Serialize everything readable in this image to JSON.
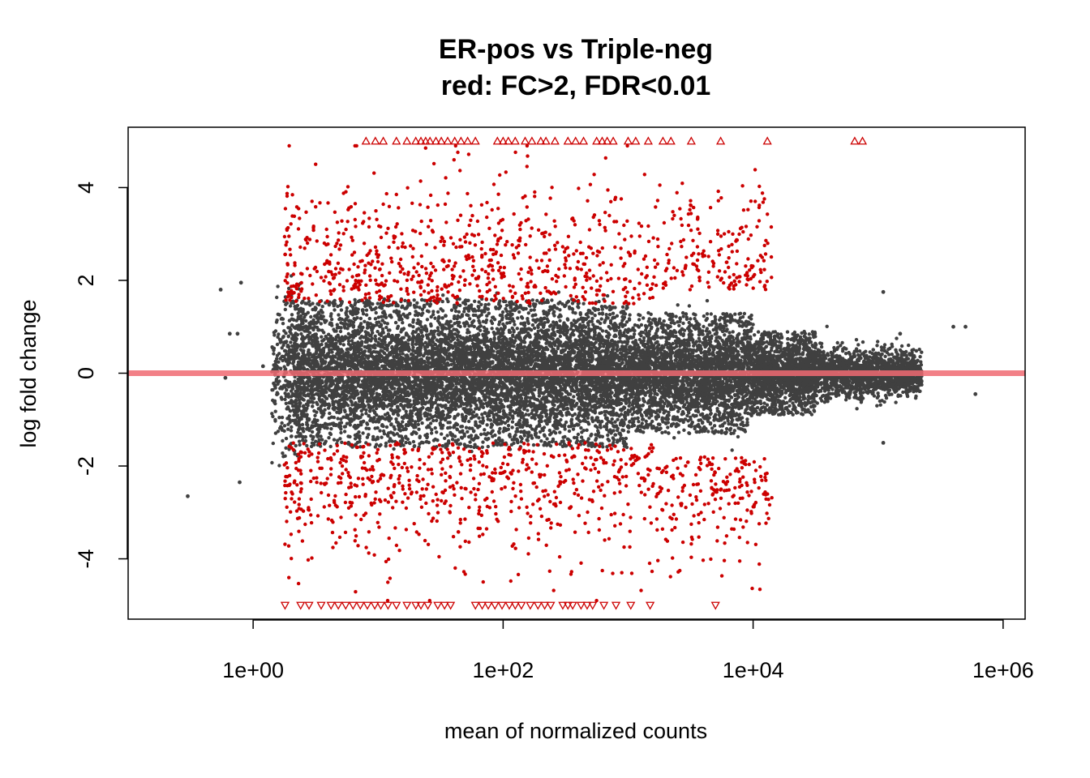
{
  "chart_data": {
    "type": "scatter",
    "title": "ER-pos vs Triple-neg",
    "subtitle": "red: FC>2, FDR<0.01",
    "xlabel": "mean of normalized counts",
    "ylabel": "log fold change",
    "x_scale": "log10",
    "xlim": [
      0.1,
      1500000
    ],
    "ylim": [
      -5.3,
      5.3
    ],
    "x_ticks": [
      {
        "value": 1,
        "label": "1e+00"
      },
      {
        "value": 100,
        "label": "1e+02"
      },
      {
        "value": 10000,
        "label": "1e+04"
      },
      {
        "value": 1000000,
        "label": "1e+06"
      }
    ],
    "y_ticks": [
      {
        "value": -4,
        "label": "-4"
      },
      {
        "value": -2,
        "label": "-2"
      },
      {
        "value": 0,
        "label": "0"
      },
      {
        "value": 2,
        "label": "2"
      },
      {
        "value": 4,
        "label": "4"
      }
    ],
    "reference_line": {
      "y": 0,
      "color": "#f08080"
    },
    "grid": false,
    "legend": "none",
    "colors": {
      "non_significant": "#404040",
      "significant": "#cc0000",
      "reference": "#f06a72"
    },
    "series": [
      {
        "color": "#cc0000",
        "marker": "triangle-up",
        "note_values_clipped_at": 5,
        "points": [
          {
            "x": 8,
            "y": 5
          },
          {
            "x": 9.5,
            "y": 5
          },
          {
            "x": 11,
            "y": 5
          },
          {
            "x": 14,
            "y": 5
          },
          {
            "x": 17,
            "y": 5
          },
          {
            "x": 20,
            "y": 5
          },
          {
            "x": 22,
            "y": 5
          },
          {
            "x": 24,
            "y": 5
          },
          {
            "x": 26,
            "y": 5
          },
          {
            "x": 29,
            "y": 5
          },
          {
            "x": 32,
            "y": 5
          },
          {
            "x": 36,
            "y": 5
          },
          {
            "x": 41,
            "y": 5
          },
          {
            "x": 46,
            "y": 5
          },
          {
            "x": 52,
            "y": 5
          },
          {
            "x": 60,
            "y": 5
          },
          {
            "x": 90,
            "y": 5
          },
          {
            "x": 100,
            "y": 5
          },
          {
            "x": 110,
            "y": 5
          },
          {
            "x": 125,
            "y": 5
          },
          {
            "x": 150,
            "y": 5
          },
          {
            "x": 170,
            "y": 5
          },
          {
            "x": 200,
            "y": 5
          },
          {
            "x": 220,
            "y": 5
          },
          {
            "x": 260,
            "y": 5
          },
          {
            "x": 330,
            "y": 5
          },
          {
            "x": 380,
            "y": 5
          },
          {
            "x": 440,
            "y": 5
          },
          {
            "x": 560,
            "y": 5
          },
          {
            "x": 620,
            "y": 5
          },
          {
            "x": 680,
            "y": 5
          },
          {
            "x": 760,
            "y": 5
          },
          {
            "x": 1000,
            "y": 5
          },
          {
            "x": 1150,
            "y": 5
          },
          {
            "x": 1450,
            "y": 5
          },
          {
            "x": 1900,
            "y": 5
          },
          {
            "x": 2200,
            "y": 5
          },
          {
            "x": 3200,
            "y": 5
          },
          {
            "x": 5500,
            "y": 5
          },
          {
            "x": 13000,
            "y": 5
          },
          {
            "x": 65000,
            "y": 5
          },
          {
            "x": 75000,
            "y": 5
          }
        ]
      },
      {
        "color": "#cc0000",
        "marker": "triangle-down",
        "note_values_clipped_at": -5,
        "points": [
          {
            "x": 1.8,
            "y": -5
          },
          {
            "x": 2.4,
            "y": -5
          },
          {
            "x": 2.8,
            "y": -5
          },
          {
            "x": 3.5,
            "y": -5
          },
          {
            "x": 4.2,
            "y": -5
          },
          {
            "x": 4.8,
            "y": -5
          },
          {
            "x": 5.5,
            "y": -5
          },
          {
            "x": 6.3,
            "y": -5
          },
          {
            "x": 7.2,
            "y": -5
          },
          {
            "x": 8.2,
            "y": -5
          },
          {
            "x": 9.4,
            "y": -5
          },
          {
            "x": 10.5,
            "y": -5
          },
          {
            "x": 12,
            "y": -5
          },
          {
            "x": 14,
            "y": -5
          },
          {
            "x": 17,
            "y": -5
          },
          {
            "x": 20,
            "y": -5
          },
          {
            "x": 22,
            "y": -5
          },
          {
            "x": 25,
            "y": -5
          },
          {
            "x": 30,
            "y": -5
          },
          {
            "x": 34,
            "y": -5
          },
          {
            "x": 38,
            "y": -5
          },
          {
            "x": 60,
            "y": -5
          },
          {
            "x": 68,
            "y": -5
          },
          {
            "x": 76,
            "y": -5
          },
          {
            "x": 86,
            "y": -5
          },
          {
            "x": 98,
            "y": -5
          },
          {
            "x": 112,
            "y": -5
          },
          {
            "x": 125,
            "y": -5
          },
          {
            "x": 140,
            "y": -5
          },
          {
            "x": 165,
            "y": -5
          },
          {
            "x": 190,
            "y": -5
          },
          {
            "x": 215,
            "y": -5
          },
          {
            "x": 240,
            "y": -5
          },
          {
            "x": 300,
            "y": -5
          },
          {
            "x": 330,
            "y": -5
          },
          {
            "x": 360,
            "y": -5
          },
          {
            "x": 420,
            "y": -5
          },
          {
            "x": 470,
            "y": -5
          },
          {
            "x": 520,
            "y": -5
          },
          {
            "x": 640,
            "y": -5
          },
          {
            "x": 800,
            "y": -5
          },
          {
            "x": 1050,
            "y": -5
          },
          {
            "x": 1500,
            "y": -5
          },
          {
            "x": 5000,
            "y": -5
          }
        ]
      },
      {
        "color": "#404040",
        "marker": "dot",
        "description_outliers": [
          {
            "x": 0.3,
            "y": -2.65
          },
          {
            "x": 0.55,
            "y": 1.8
          },
          {
            "x": 0.6,
            "y": -0.1
          },
          {
            "x": 0.65,
            "y": 0.85
          },
          {
            "x": 0.75,
            "y": 0.85
          },
          {
            "x": 0.78,
            "y": -2.35
          },
          {
            "x": 0.8,
            "y": 1.95
          },
          {
            "x": 1.2,
            "y": 0.15
          },
          {
            "x": 150000,
            "y": 0.85
          },
          {
            "x": 400000,
            "y": 1.0
          },
          {
            "x": 500000,
            "y": 1.0
          },
          {
            "x": 600000,
            "y": -0.45
          },
          {
            "x": 110000,
            "y": 1.75
          },
          {
            "x": 110000,
            "y": -1.5
          }
        ]
      }
    ],
    "approx_bulk": {
      "non_significant_extent": "x from ~1 to ~1e6, |y| up to ~2 at low x narrowing to ~0.5 at high x",
      "significant_extent": "x from ~1 to ~1e4, |y| between ~1.5 and ~5"
    }
  }
}
